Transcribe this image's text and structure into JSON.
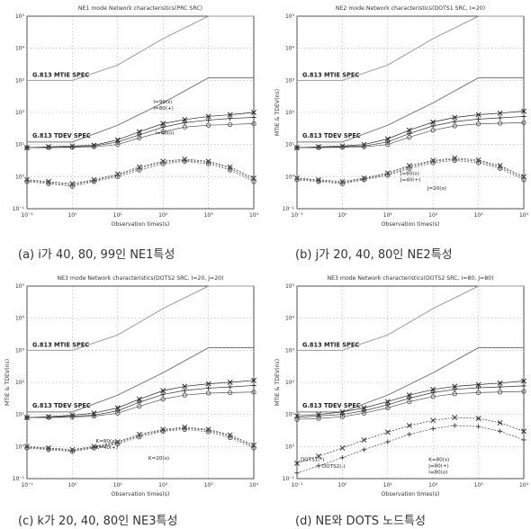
{
  "figure": {
    "captions": [
      "(a) i가 40, 80, 99인 NE1특성",
      "(b) j가 20, 40, 80인 NE2특성",
      "(c) k가 20, 40, 80인 NE3특성",
      "(d) NE와 DOTS 노드특성"
    ]
  },
  "chart_data": [
    {
      "type": "scatter",
      "title": "NE1 mode Network characteristics(PRC SRC)",
      "xlabel": "Observation times(s)",
      "ylabel": "",
      "xscale": "log",
      "yscale": "log",
      "xlim": [
        0.1,
        10000
      ],
      "ylim": [
        0.1,
        100000
      ],
      "xticks": [
        "10⁻¹",
        "10⁰",
        "10¹",
        "10²",
        "10³",
        "10⁴"
      ],
      "yticks": [
        "10⁻¹",
        "10⁰",
        "10¹",
        "10²",
        "10³",
        "10⁴",
        "10⁵"
      ],
      "annotations": [
        "G.813 MTIE SPEC",
        "G.813 TDEV SPEC",
        "I=99(x)",
        "I=80(+)",
        "I=40(o)"
      ],
      "spec_lines": [
        {
          "name": "G.813 MTIE SPEC",
          "x": [
            0.1,
            1,
            10,
            100,
            1000,
            10000
          ],
          "y": [
            1000,
            1000,
            3000,
            20000,
            100000,
            100000
          ]
        },
        {
          "name": "G.813 TDEV SPEC",
          "x": [
            0.1,
            1,
            10,
            100,
            1000,
            10000
          ],
          "y": [
            12,
            12,
            40,
            200,
            1200,
            1200
          ]
        }
      ],
      "series": [
        {
          "x": [
            0.1,
            0.3,
            1,
            3,
            10,
            30,
            100,
            300,
            1000,
            3000,
            10000
          ],
          "y": [
            8,
            8.5,
            9,
            9.5,
            14,
            25,
            45,
            60,
            75,
            85,
            100
          ]
        },
        {
          "x": [
            0.1,
            0.3,
            1,
            3,
            10,
            30,
            100,
            300,
            1000,
            3000,
            10000
          ],
          "y": [
            8,
            8.2,
            8.5,
            9,
            12,
            20,
            35,
            48,
            58,
            65,
            70
          ]
        },
        {
          "x": [
            0.1,
            0.3,
            1,
            3,
            10,
            30,
            100,
            300,
            1000,
            3000,
            10000
          ],
          "y": [
            8,
            8,
            8.2,
            8.5,
            10,
            16,
            25,
            35,
            40,
            42,
            45
          ]
        },
        {
          "x": [
            0.1,
            0.3,
            1,
            3,
            10,
            30,
            100,
            300,
            1000,
            3000,
            10000
          ],
          "y": [
            0.8,
            0.7,
            0.6,
            0.8,
            1.2,
            2,
            3,
            3.5,
            3,
            2,
            0.9
          ]
        },
        {
          "x": [
            0.1,
            0.3,
            1,
            3,
            10,
            30,
            100,
            300,
            1000,
            3000,
            10000
          ],
          "y": [
            0.75,
            0.65,
            0.55,
            0.75,
            1.1,
            1.8,
            2.8,
            3.2,
            2.8,
            1.8,
            0.8
          ]
        },
        {
          "x": [
            0.1,
            0.3,
            1,
            3,
            10,
            30,
            100,
            300,
            1000,
            3000,
            10000
          ],
          "y": [
            0.7,
            0.6,
            0.5,
            0.7,
            1,
            1.6,
            2.5,
            3,
            2.5,
            1.6,
            0.7
          ]
        }
      ]
    },
    {
      "type": "scatter",
      "title": "NE2 mode Network characteristics(DOTS1 SRC, I=20)",
      "xlabel": "Observation times(s)",
      "ylabel": "MTIE & TDEV(ns)",
      "xscale": "log",
      "yscale": "log",
      "xlim": [
        0.1,
        10000
      ],
      "ylim": [
        0.1,
        100000
      ],
      "xticks": [
        "10⁻¹",
        "10⁰",
        "10¹",
        "10²",
        "10³",
        "10⁴"
      ],
      "yticks": [
        "10⁻¹",
        "10⁰",
        "10¹",
        "10²",
        "10³",
        "10⁴",
        "10⁵"
      ],
      "annotations": [
        "G.813 MTIE SPEC",
        "G.813 TDEV SPEC",
        "J=80(x)",
        "J=40(+)",
        "J=20(o)"
      ],
      "spec_lines": [
        {
          "name": "G.813 MTIE SPEC",
          "x": [
            0.1,
            1,
            10,
            100,
            1000,
            10000
          ],
          "y": [
            1000,
            1000,
            3000,
            20000,
            100000,
            100000
          ]
        },
        {
          "name": "G.813 TDEV SPEC",
          "x": [
            0.1,
            1,
            10,
            100,
            1000,
            10000
          ],
          "y": [
            12,
            12,
            40,
            200,
            1200,
            1200
          ]
        }
      ],
      "series": [
        {
          "x": [
            0.1,
            0.3,
            1,
            3,
            10,
            30,
            100,
            300,
            1000,
            3000,
            10000
          ],
          "y": [
            8,
            8.5,
            9,
            10,
            15,
            28,
            50,
            70,
            85,
            95,
            110
          ]
        },
        {
          "x": [
            0.1,
            0.3,
            1,
            3,
            10,
            30,
            100,
            300,
            1000,
            3000,
            10000
          ],
          "y": [
            8,
            8.2,
            8.5,
            9,
            12,
            22,
            38,
            52,
            62,
            68,
            75
          ]
        },
        {
          "x": [
            0.1,
            0.3,
            1,
            3,
            10,
            30,
            100,
            300,
            1000,
            3000,
            10000
          ],
          "y": [
            8,
            8,
            8.2,
            8.5,
            10,
            17,
            28,
            38,
            44,
            46,
            48
          ]
        },
        {
          "x": [
            0.1,
            0.3,
            1,
            3,
            10,
            30,
            100,
            300,
            1000,
            3000,
            10000
          ],
          "y": [
            0.9,
            0.8,
            0.7,
            0.9,
            1.3,
            2.2,
            3.2,
            3.8,
            3.3,
            2.2,
            1.0
          ]
        },
        {
          "x": [
            0.1,
            0.3,
            1,
            3,
            10,
            30,
            100,
            300,
            1000,
            3000,
            10000
          ],
          "y": [
            0.85,
            0.75,
            0.65,
            0.85,
            1.2,
            2,
            3,
            3.5,
            3,
            2,
            0.9
          ]
        },
        {
          "x": [
            0.1,
            0.3,
            1,
            3,
            10,
            30,
            100,
            300,
            1000,
            3000,
            10000
          ],
          "y": [
            0.8,
            0.7,
            0.6,
            0.8,
            1.1,
            1.8,
            2.7,
            3.2,
            2.7,
            1.8,
            0.8
          ]
        }
      ]
    },
    {
      "type": "scatter",
      "title": "NE3 mode Network characteristics(DOTS2 SRC, I=20, J=20)",
      "xlabel": "Observation times(s)",
      "ylabel": "MTIE & TDEV(ns)",
      "xscale": "log",
      "yscale": "log",
      "xlim": [
        0.1,
        10000
      ],
      "ylim": [
        0.1,
        100000
      ],
      "xticks": [
        "10⁻¹",
        "10⁰",
        "10¹",
        "10²",
        "10³",
        "10⁴"
      ],
      "yticks": [
        "10⁻¹",
        "10⁰",
        "10¹",
        "10²",
        "10³",
        "10⁴",
        "10⁵"
      ],
      "annotations": [
        "G.813 MTIE SPEC",
        "G.813 TDEV SPEC",
        "K=80(x)",
        "K=40(+)",
        "K=20(o)"
      ],
      "spec_lines": [
        {
          "name": "G.813 MTIE SPEC",
          "x": [
            0.1,
            1,
            10,
            100,
            1000,
            10000
          ],
          "y": [
            1000,
            1000,
            3000,
            20000,
            100000,
            100000
          ]
        },
        {
          "name": "G.813 TDEV SPEC",
          "x": [
            0.1,
            1,
            10,
            100,
            1000,
            10000
          ],
          "y": [
            12,
            12,
            40,
            200,
            1200,
            1200
          ]
        }
      ],
      "series": [
        {
          "x": [
            0.1,
            0.3,
            1,
            3,
            10,
            30,
            100,
            300,
            1000,
            3000,
            10000
          ],
          "y": [
            8,
            8.5,
            9.5,
            11,
            16,
            30,
            55,
            75,
            90,
            100,
            115
          ]
        },
        {
          "x": [
            0.1,
            0.3,
            1,
            3,
            10,
            30,
            100,
            300,
            1000,
            3000,
            10000
          ],
          "y": [
            8,
            8.2,
            8.8,
            9.5,
            13,
            24,
            42,
            56,
            66,
            72,
            80
          ]
        },
        {
          "x": [
            0.1,
            0.3,
            1,
            3,
            10,
            30,
            100,
            300,
            1000,
            3000,
            10000
          ],
          "y": [
            8,
            8,
            8.3,
            8.8,
            11,
            18,
            30,
            40,
            46,
            48,
            50
          ]
        },
        {
          "x": [
            0.1,
            0.3,
            1,
            3,
            10,
            30,
            100,
            300,
            1000,
            3000,
            10000
          ],
          "y": [
            1.0,
            0.9,
            0.8,
            1.0,
            1.4,
            2.4,
            3.4,
            4,
            3.4,
            2.3,
            1.1
          ]
        },
        {
          "x": [
            0.1,
            0.3,
            1,
            3,
            10,
            30,
            100,
            300,
            1000,
            3000,
            10000
          ],
          "y": [
            0.95,
            0.85,
            0.75,
            0.95,
            1.3,
            2.2,
            3.2,
            3.7,
            3.2,
            2.1,
            1.0
          ]
        },
        {
          "x": [
            0.1,
            0.3,
            1,
            3,
            10,
            30,
            100,
            300,
            1000,
            3000,
            10000
          ],
          "y": [
            0.9,
            0.8,
            0.7,
            0.9,
            1.2,
            2,
            3,
            3.4,
            2.9,
            1.9,
            0.9
          ]
        }
      ]
    },
    {
      "type": "scatter",
      "title": "NE3 mode Network characteristics(DOTS2 SRC, I=80, J=80)",
      "xlabel": "Observation times(s)",
      "ylabel": "MTIE & TDEV(ns)",
      "xscale": "log",
      "yscale": "log",
      "xlim": [
        0.1,
        10000
      ],
      "ylim": [
        0.1,
        100000
      ],
      "xticks": [
        "10⁻¹",
        "10⁰",
        "10¹",
        "10²",
        "10³",
        "10⁴"
      ],
      "yticks": [
        "10⁻¹",
        "10⁰",
        "10¹",
        "10²",
        "10³",
        "10⁴",
        "10⁵"
      ],
      "annotations": [
        "G.813 MTIE SPEC",
        "G.813 TDEV SPEC",
        "DOTS1(*)",
        "DOTS2(.)",
        "K=80(x)",
        "J=80(+)",
        "I=80(o)"
      ],
      "spec_lines": [
        {
          "name": "G.813 MTIE SPEC",
          "x": [
            0.1,
            1,
            10,
            100,
            1000,
            10000
          ],
          "y": [
            1000,
            1000,
            3000,
            20000,
            100000,
            100000
          ]
        },
        {
          "name": "G.813 TDEV SPEC",
          "x": [
            0.1,
            1,
            10,
            100,
            1000,
            10000
          ],
          "y": [
            12,
            12,
            40,
            200,
            1200,
            1200
          ]
        }
      ],
      "series": [
        {
          "x": [
            0.1,
            0.3,
            1,
            3,
            10,
            30,
            100,
            300,
            1000,
            3000,
            10000
          ],
          "y": [
            9,
            10,
            12,
            16,
            25,
            40,
            60,
            75,
            85,
            95,
            110
          ]
        },
        {
          "x": [
            0.1,
            0.3,
            1,
            3,
            10,
            30,
            100,
            300,
            1000,
            3000,
            10000
          ],
          "y": [
            8,
            9,
            10,
            13,
            20,
            32,
            48,
            60,
            68,
            72,
            78
          ]
        },
        {
          "x": [
            0.1,
            0.3,
            1,
            3,
            10,
            30,
            100,
            300,
            1000,
            3000,
            10000
          ],
          "y": [
            7,
            7.5,
            8.5,
            11,
            16,
            25,
            36,
            44,
            48,
            50,
            52
          ]
        },
        {
          "x": [
            0.1,
            0.3,
            1,
            3,
            10,
            30,
            100,
            300,
            1000,
            3000,
            10000
          ],
          "y": [
            0.3,
            0.5,
            0.9,
            1.6,
            2.8,
            4.5,
            6.5,
            8,
            7.5,
            5.5,
            3
          ]
        },
        {
          "x": [
            0.1,
            0.3,
            1,
            3,
            10,
            30,
            100,
            300,
            1000,
            3000,
            10000
          ],
          "y": [
            0.15,
            0.25,
            0.45,
            0.8,
            1.4,
            2.4,
            3.6,
            4.5,
            4.2,
            3,
            1.6
          ]
        }
      ]
    }
  ]
}
